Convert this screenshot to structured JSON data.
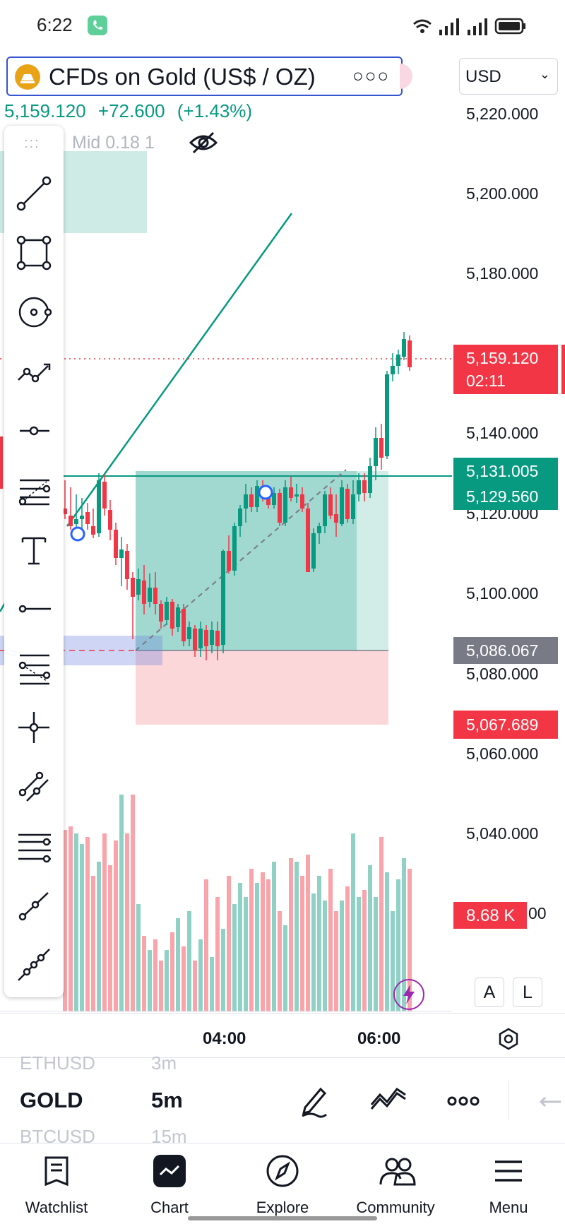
{
  "status_bar": {
    "time": "6:22"
  },
  "header": {
    "symbol_name": "CFDs on Gold (US$ / OZ)",
    "more": "○○○",
    "currency": "USD",
    "price": "5,159.120",
    "change": "+72.600",
    "change_pct": "(+1.43%)",
    "indicator_label": "Mid 0.18 1"
  },
  "price_axis": {
    "labels": [
      "5,220.000",
      "5,200.000",
      "5,180.000",
      "5,140.000",
      "5,120.000",
      "5,100.000",
      "5,080.000",
      "5,060.000",
      "5,040.000"
    ],
    "vol_partial": "00"
  },
  "price_tags": {
    "last_price": "5,159.120",
    "countdown": "02:11",
    "target_high": "5,131.005",
    "target_low": "5,129.560",
    "entry": "5,086.067",
    "stop": "5,067.689",
    "volume": "8.68 K"
  },
  "scale_buttons": {
    "auto": "A",
    "log": "L"
  },
  "time_axis": {
    "labels": [
      "04:00",
      "06:00"
    ]
  },
  "picker": {
    "prev_symbol": "ETHUSD",
    "prev_interval": "3m",
    "symbol": "GOLD",
    "interval": "5m",
    "next_symbol": "BTCUSD",
    "next_interval": "15m"
  },
  "bottom_nav": {
    "items": [
      {
        "label": "Watchlist",
        "icon": "watchlist-icon"
      },
      {
        "label": "Chart",
        "icon": "chart-icon"
      },
      {
        "label": "Explore",
        "icon": "compass-icon"
      },
      {
        "label": "Community",
        "icon": "community-icon"
      },
      {
        "label": "Menu",
        "icon": "menu-icon"
      }
    ]
  },
  "colors": {
    "up": "#089981",
    "down": "#f23645",
    "accent": "#2962ff"
  }
}
